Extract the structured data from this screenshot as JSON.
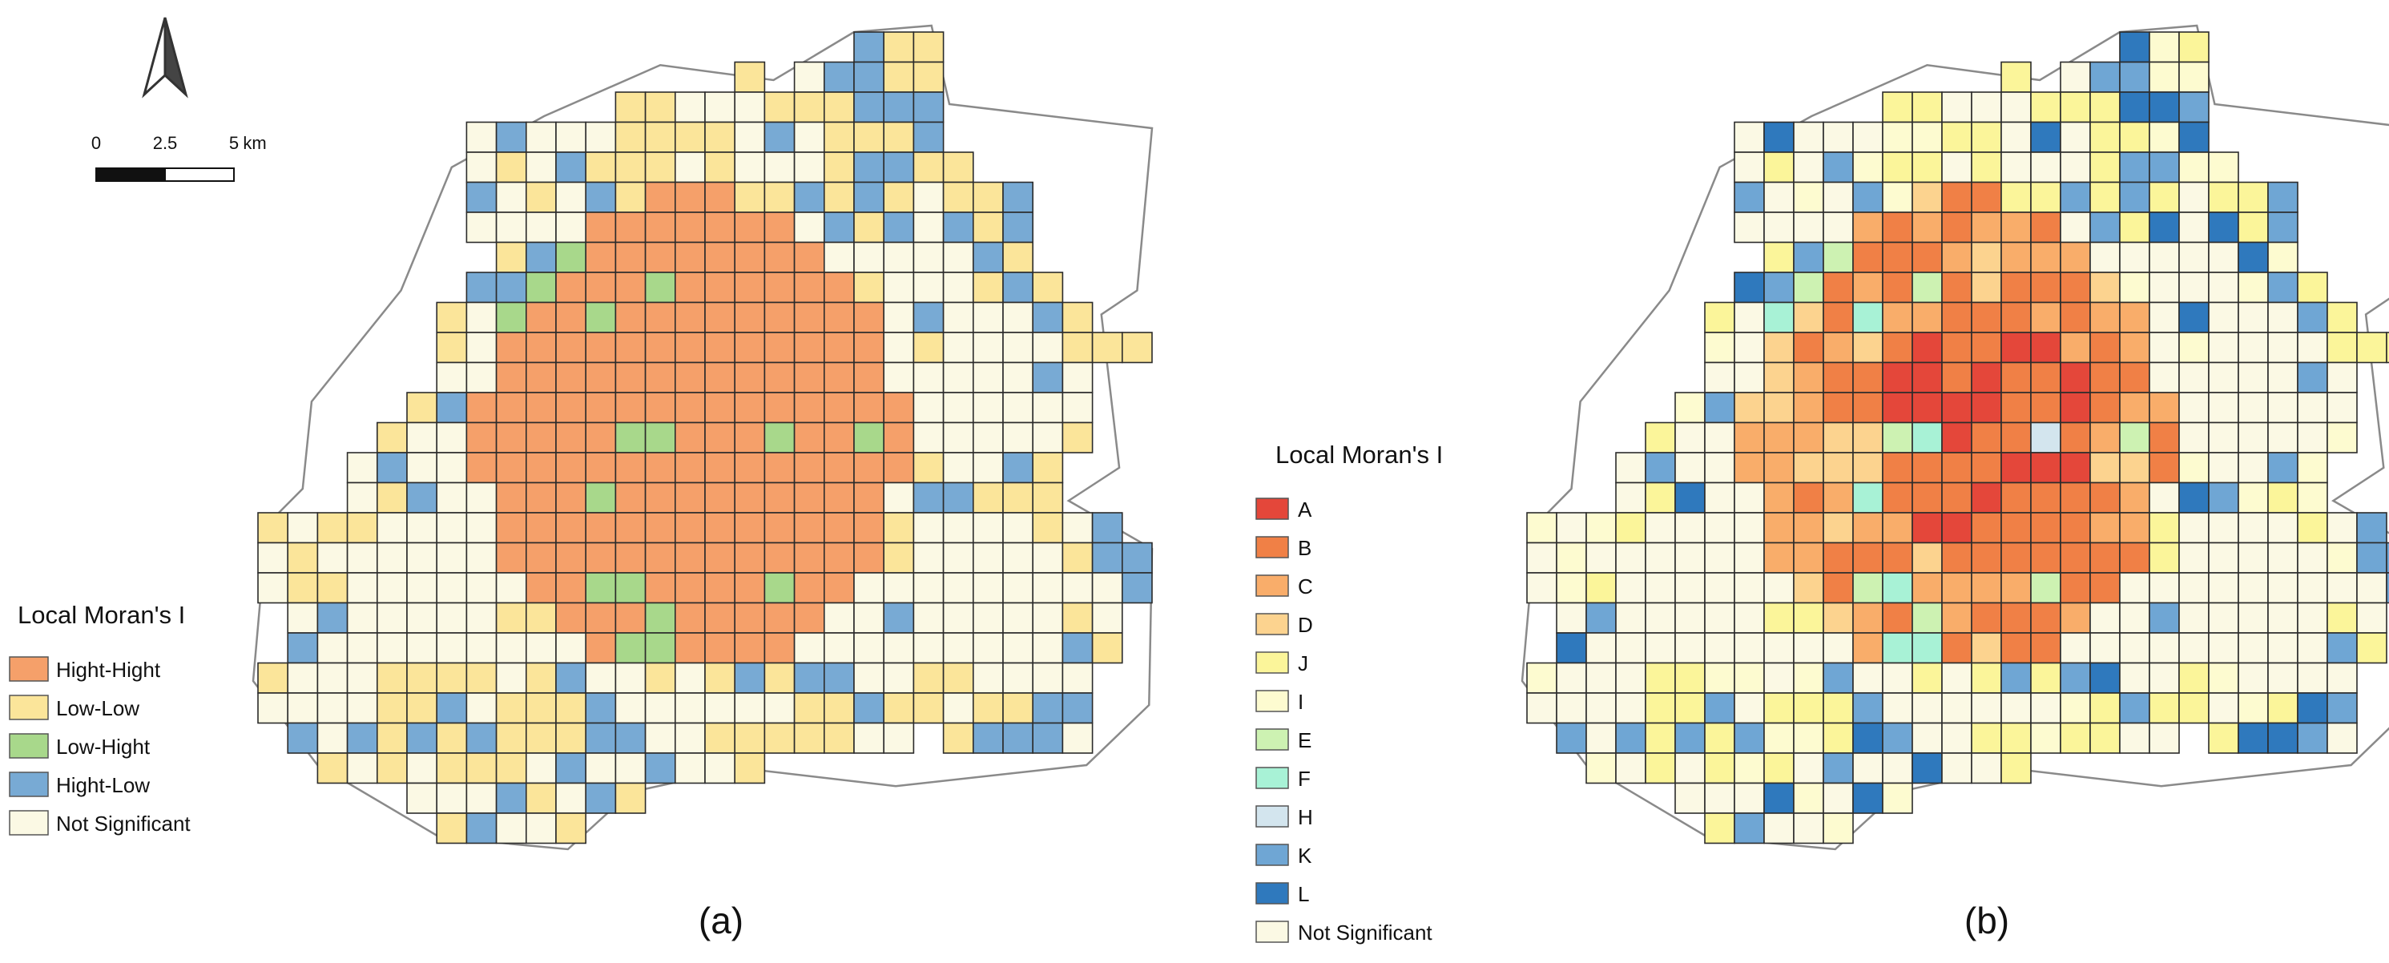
{
  "north_arrow": {
    "label": ""
  },
  "scalebar": {
    "ticks": [
      "0",
      "2.5",
      "5"
    ],
    "unit": "km"
  },
  "panel_a": {
    "caption": "(a)",
    "legend_title": "Local Moran's I",
    "legend": [
      {
        "key": "HH",
        "label": "Hight-Hight",
        "color": "#f5a06a"
      },
      {
        "key": "LL",
        "label": "Low-Low",
        "color": "#fbe59a"
      },
      {
        "key": "LH",
        "label": "Low-Hight",
        "color": "#a8d88b"
      },
      {
        "key": "HL",
        "label": "Hight-Low",
        "color": "#78aad4"
      },
      {
        "key": "NS",
        "label": "Not Significant",
        "color": "#fbf9e4"
      }
    ]
  },
  "panel_b": {
    "caption": "(b)",
    "legend_title": "Local Moran's I",
    "legend": [
      {
        "key": "A",
        "label": "A",
        "color": "#e4473a"
      },
      {
        "key": "B",
        "label": "B",
        "color": "#f08046"
      },
      {
        "key": "C",
        "label": "C",
        "color": "#f9ad6a"
      },
      {
        "key": "D",
        "label": "D",
        "color": "#fcd38f"
      },
      {
        "key": "J",
        "label": "J",
        "color": "#fbf59a"
      },
      {
        "key": "I",
        "label": "I",
        "color": "#fdfbd0"
      },
      {
        "key": "E",
        "label": "E",
        "color": "#cdf2b2"
      },
      {
        "key": "F",
        "label": "F",
        "color": "#a8f2d6"
      },
      {
        "key": "H",
        "label": "H",
        "color": "#d3e5ee"
      },
      {
        "key": "K",
        "label": "K",
        "color": "#6fa6d4"
      },
      {
        "key": "L",
        "label": "L",
        "color": "#2f79bd"
      },
      {
        "key": "NS",
        "label": "Not Significant",
        "color": "#fbf9e4"
      }
    ]
  }
}
